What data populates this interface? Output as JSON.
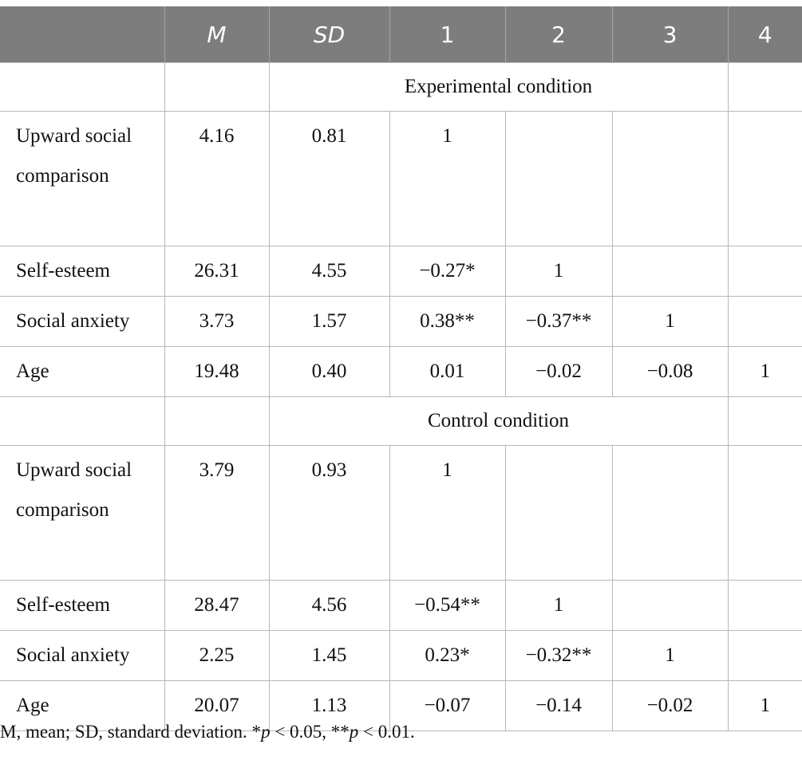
{
  "headers": [
    "",
    "M",
    "SD",
    "1",
    "2",
    "3",
    "4"
  ],
  "sections": [
    {
      "title": "Experimental condition",
      "rows": [
        {
          "label": "Upward social comparison",
          "m": "4.16",
          "sd": "0.81",
          "c1": "1",
          "c2": "",
          "c3": "",
          "c4": ""
        },
        {
          "label": "Self-esteem",
          "m": "26.31",
          "sd": "4.55",
          "c1": "−0.27*",
          "c2": "1",
          "c3": "",
          "c4": ""
        },
        {
          "label": "Social anxiety",
          "m": "3.73",
          "sd": "1.57",
          "c1": "0.38**",
          "c2": "−0.37**",
          "c3": "1",
          "c4": ""
        },
        {
          "label": "Age",
          "m": "19.48",
          "sd": "0.40",
          "c1": "0.01",
          "c2": "−0.02",
          "c3": "−0.08",
          "c4": "1"
        }
      ]
    },
    {
      "title": "Control condition",
      "rows": [
        {
          "label": "Upward social comparison",
          "m": "3.79",
          "sd": "0.93",
          "c1": "1",
          "c2": "",
          "c3": "",
          "c4": ""
        },
        {
          "label": "Self-esteem",
          "m": "28.47",
          "sd": "4.56",
          "c1": "−0.54**",
          "c2": "1",
          "c3": "",
          "c4": ""
        },
        {
          "label": "Social anxiety",
          "m": "2.25",
          "sd": "1.45",
          "c1": "0.23*",
          "c2": "−0.32**",
          "c3": "1",
          "c4": ""
        },
        {
          "label": "Age",
          "m": "20.07",
          "sd": "1.13",
          "c1": "−0.07",
          "c2": "−0.14",
          "c3": "−0.02",
          "c4": "1"
        }
      ]
    }
  ],
  "note": {
    "part1": "M, mean; SD, standard deviation. *",
    "p1": "p",
    "part2": " < 0.05, **",
    "p2": "p",
    "part3": " < 0.01."
  }
}
